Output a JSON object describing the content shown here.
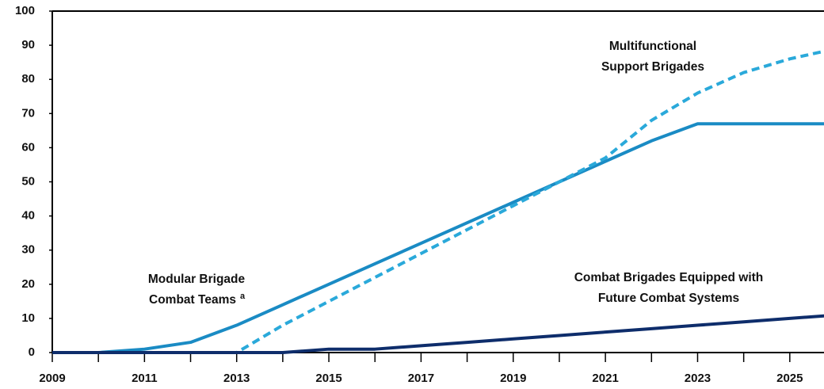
{
  "chart_data": {
    "type": "line",
    "x": [
      2009,
      2010,
      2011,
      2012,
      2013,
      2014,
      2015,
      2016,
      2017,
      2018,
      2019,
      2020,
      2021,
      2022,
      2023,
      2024,
      2025,
      2026
    ],
    "series": [
      {
        "name": "Modular Brigade Combat Teams",
        "color": "#1a8bc4",
        "dashed": false,
        "values": [
          0,
          0,
          1,
          3,
          8,
          14,
          20,
          26,
          32,
          38,
          44,
          50,
          56,
          62,
          67,
          67,
          67,
          67
        ]
      },
      {
        "name": "Multifunctional Support Brigades",
        "color": "#2aa9da",
        "dashed": true,
        "values": [
          0,
          0,
          0,
          0,
          0,
          8,
          15,
          22,
          29,
          36,
          43,
          50,
          57,
          68,
          76,
          82,
          86,
          89
        ]
      },
      {
        "name": "Combat Brigades Equipped with Future Combat Systems",
        "color": "#0e2d6b",
        "dashed": false,
        "values": [
          0,
          0,
          0,
          0,
          0,
          0,
          1,
          1,
          2,
          3,
          4,
          5,
          6,
          7,
          8,
          9,
          10,
          11
        ]
      }
    ],
    "annotations": [
      {
        "lines": [
          "Modular Brigade",
          "Combat Teams"
        ],
        "sup": "a"
      },
      {
        "lines": [
          "Multifunctional",
          "Support Brigades"
        ]
      },
      {
        "lines": [
          "Combat Brigades Equipped with",
          "Future Combat Systems"
        ]
      }
    ],
    "xlim": [
      2009,
      2026
    ],
    "xticks": [
      2009,
      2011,
      2013,
      2015,
      2017,
      2019,
      2021,
      2023,
      2025
    ],
    "ylim": [
      0,
      100
    ],
    "yticks": [
      0,
      10,
      20,
      30,
      40,
      50,
      60,
      70,
      80,
      90,
      100
    ],
    "grid": false
  }
}
